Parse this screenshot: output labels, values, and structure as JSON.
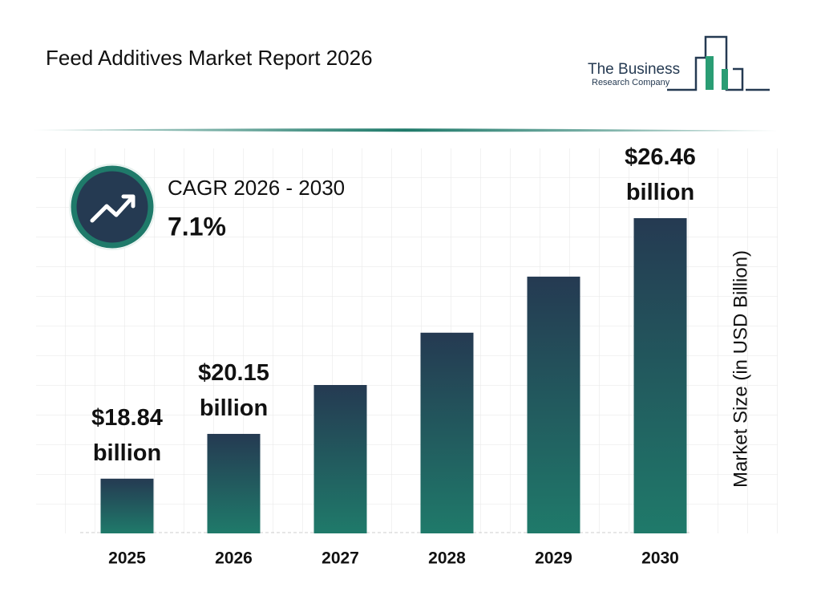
{
  "chart_data": {
    "type": "bar",
    "title": "Feed Additives Market Report 2026",
    "logo": {
      "line1": "The Business",
      "line2": "Research Company"
    },
    "cagr": {
      "label": "CAGR 2026 - 2030",
      "value": "7.1%"
    },
    "y_axis_label": "Market Size (in USD Billion)",
    "categories": [
      "2025",
      "2026",
      "2027",
      "2028",
      "2029",
      "2030"
    ],
    "values": [
      18.84,
      20.15,
      21.58,
      23.11,
      24.75,
      26.46
    ],
    "value_labels": [
      "$18.84 billion",
      "$20.15 billion",
      null,
      null,
      null,
      "$26.46 billion"
    ],
    "color": [
      "#253a52",
      "#1f7a6a"
    ]
  }
}
